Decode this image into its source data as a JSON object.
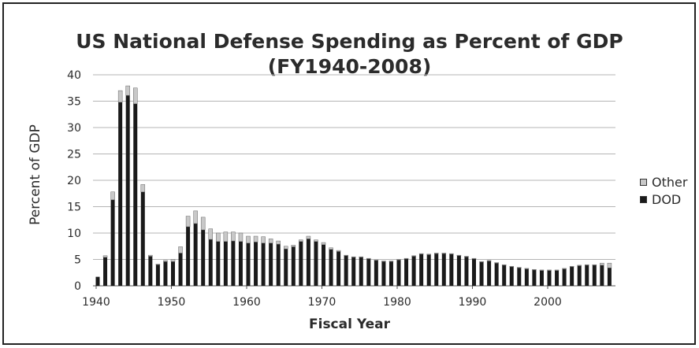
{
  "chart_data": {
    "type": "bar",
    "stacked": true,
    "title_line1": "US National Defense Spending as Percent of GDP",
    "title_line2": "(FY1940-2008)",
    "xlabel": "Fiscal Year",
    "ylabel": "Percent of GDP",
    "ylim": [
      0,
      40
    ],
    "yticks": [
      "0",
      "5",
      "10",
      "15",
      "20",
      "25",
      "30",
      "35",
      "40"
    ],
    "xticks": [
      "1940",
      "1950",
      "1960",
      "1970",
      "1980",
      "1990",
      "2000"
    ],
    "grid": true,
    "legend_position": "right",
    "colors": {
      "Other": "#c8c8c8",
      "DOD": "#1a1a1a"
    },
    "x": [
      1940,
      1941,
      1942,
      1943,
      1944,
      1945,
      1946,
      1947,
      1948,
      1949,
      1950,
      1951,
      1952,
      1953,
      1954,
      1955,
      1956,
      1957,
      1958,
      1959,
      1960,
      1961,
      1962,
      1963,
      1964,
      1965,
      1966,
      1967,
      1968,
      1969,
      1970,
      1971,
      1972,
      1973,
      1974,
      1975,
      1976,
      1977,
      1978,
      1979,
      1980,
      1981,
      1982,
      1983,
      1984,
      1985,
      1986,
      1987,
      1988,
      1989,
      1990,
      1991,
      1992,
      1993,
      1994,
      1995,
      1996,
      1997,
      1998,
      1999,
      2000,
      2001,
      2002,
      2003,
      2004,
      2005,
      2006,
      2007,
      2008
    ],
    "series": [
      {
        "name": "DOD",
        "values": [
          1.7,
          5.4,
          16.3,
          34.8,
          36.1,
          34.5,
          17.8,
          5.6,
          4.0,
          4.6,
          4.6,
          6.2,
          11.2,
          11.8,
          10.6,
          8.8,
          8.4,
          8.4,
          8.5,
          8.4,
          8.1,
          8.3,
          8.1,
          8.1,
          7.9,
          7.0,
          7.4,
          8.4,
          8.9,
          8.4,
          7.8,
          6.9,
          6.5,
          5.7,
          5.4,
          5.4,
          5.1,
          4.8,
          4.6,
          4.6,
          4.9,
          5.1,
          5.6,
          6.0,
          5.9,
          6.1,
          6.1,
          6.0,
          5.7,
          5.5,
          5.1,
          4.5,
          4.7,
          4.3,
          3.9,
          3.6,
          3.4,
          3.2,
          3.0,
          2.9,
          2.9,
          2.9,
          3.2,
          3.6,
          3.8,
          3.9,
          3.9,
          3.9,
          3.4
        ]
      },
      {
        "name": "Other",
        "values": [
          0,
          0.3,
          1.5,
          2.2,
          1.8,
          3.0,
          1.4,
          0.2,
          0.1,
          0.2,
          0.4,
          1.2,
          2.0,
          2.4,
          2.4,
          2.0,
          1.6,
          1.8,
          1.7,
          1.6,
          1.3,
          1.1,
          1.2,
          0.8,
          0.6,
          0.5,
          0.3,
          0.3,
          0.5,
          0.3,
          0.4,
          0.3,
          0.2,
          0.1,
          0.1,
          0.1,
          0.1,
          0.1,
          0.1,
          0.1,
          0.1,
          0.1,
          0.1,
          0.1,
          0.1,
          0.1,
          0.1,
          0.1,
          0.1,
          0.1,
          0.1,
          0.1,
          0.1,
          0.1,
          0.1,
          0.1,
          0.1,
          0.1,
          0.1,
          0.1,
          0.1,
          0.1,
          0.1,
          0.1,
          0.1,
          0.1,
          0.1,
          0.4,
          0.9
        ]
      }
    ]
  }
}
